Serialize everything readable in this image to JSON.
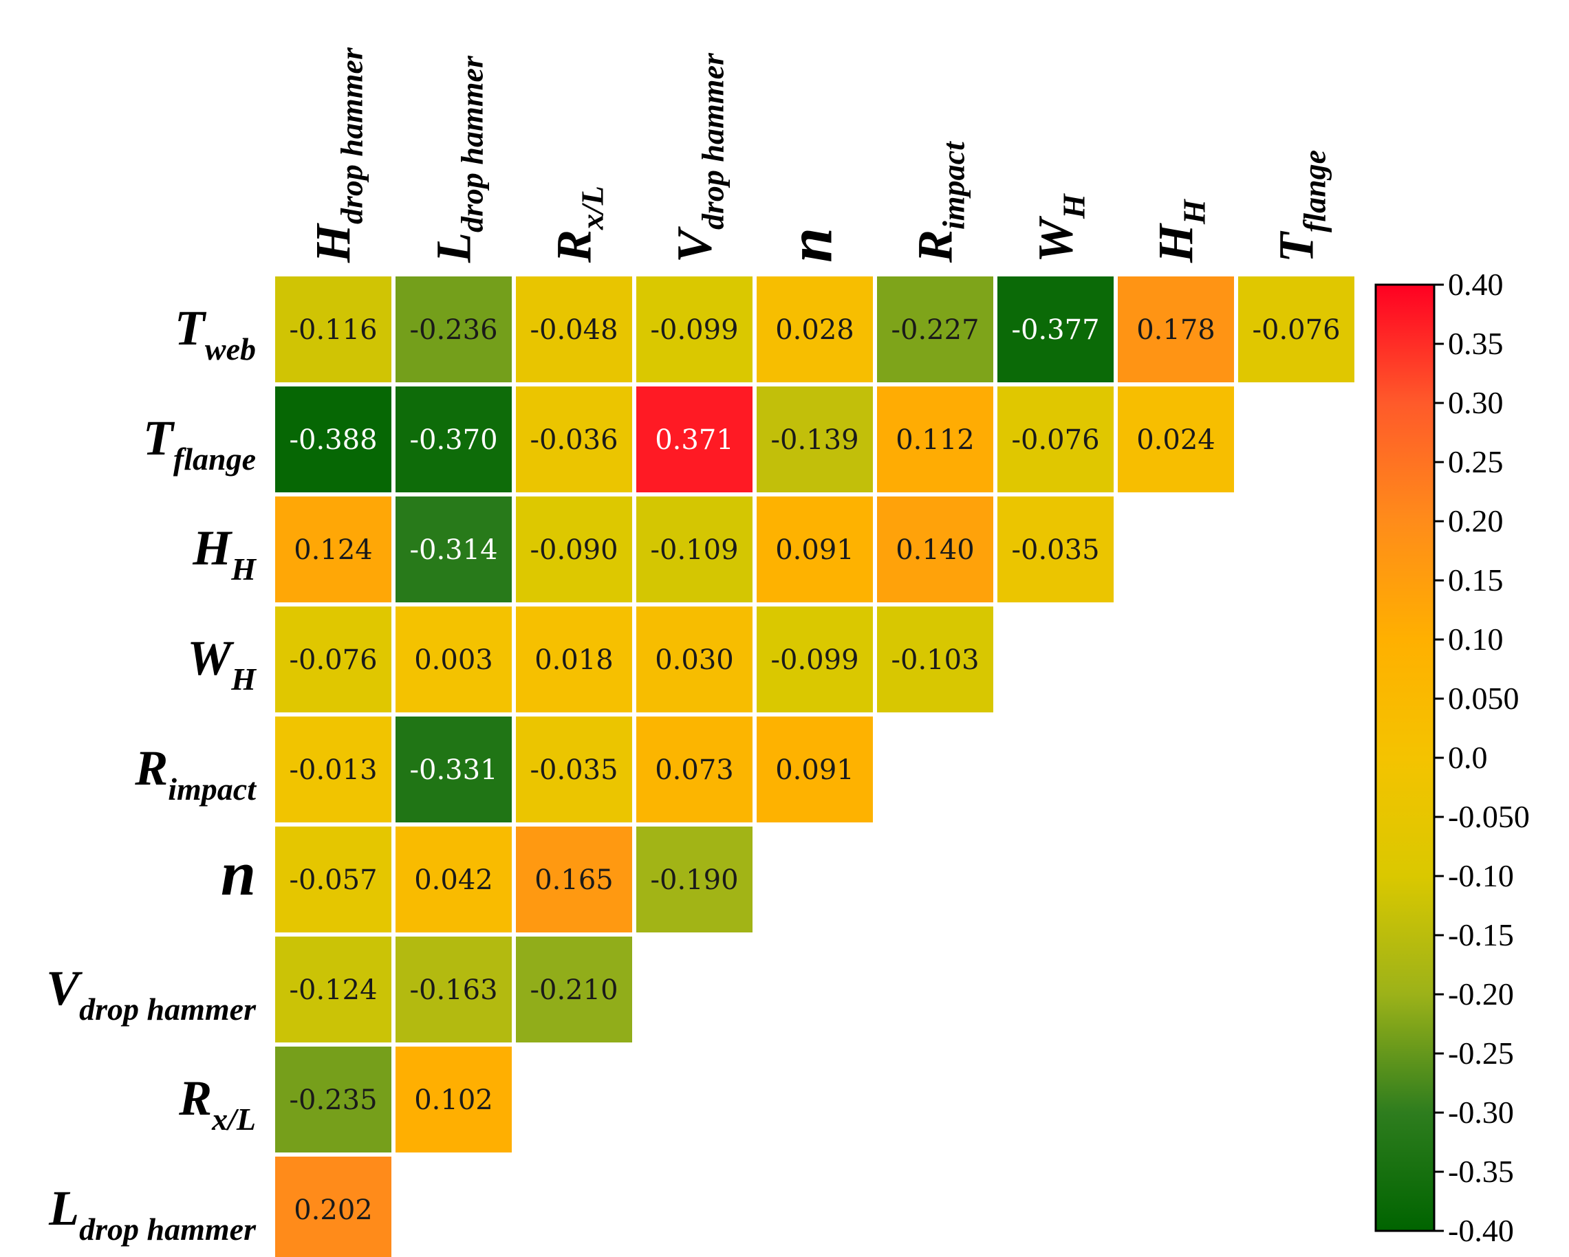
{
  "chart_data": {
    "type": "heatmap",
    "columns": [
      {
        "main": "H",
        "sub": "drop hammer"
      },
      {
        "main": "L",
        "sub": "drop hammer"
      },
      {
        "main": "R",
        "sub": "x/L"
      },
      {
        "main": "V",
        "sub": "drop hammer"
      },
      {
        "main": "n",
        "sub": ""
      },
      {
        "main": "R",
        "sub": "impact"
      },
      {
        "main": "W",
        "sub": "H"
      },
      {
        "main": "H",
        "sub": "H"
      },
      {
        "main": "T",
        "sub": "flange"
      }
    ],
    "rows": [
      {
        "main": "T",
        "sub": "web"
      },
      {
        "main": "T",
        "sub": "flange"
      },
      {
        "main": "H",
        "sub": "H"
      },
      {
        "main": "W",
        "sub": "H"
      },
      {
        "main": "R",
        "sub": "impact"
      },
      {
        "main": "n",
        "sub": ""
      },
      {
        "main": "V",
        "sub": "drop hammer"
      },
      {
        "main": "R",
        "sub": "x/L"
      },
      {
        "main": "L",
        "sub": "drop hammer"
      }
    ],
    "values": [
      [
        "-0.116",
        "-0.236",
        "-0.048",
        "-0.099",
        "0.028",
        "-0.227",
        "-0.377",
        "0.178",
        "-0.076"
      ],
      [
        "-0.388",
        "-0.370",
        "-0.036",
        "0.371",
        "-0.139",
        "0.112",
        "-0.076",
        "0.024"
      ],
      [
        "0.124",
        "-0.314",
        "-0.090",
        "-0.109",
        "0.091",
        "0.140",
        "-0.035"
      ],
      [
        "-0.076",
        "0.003",
        "0.018",
        "0.030",
        "-0.099",
        "-0.103"
      ],
      [
        "-0.013",
        "-0.331",
        "-0.035",
        "0.073",
        "0.091"
      ],
      [
        "-0.057",
        "0.042",
        "0.165",
        "-0.190"
      ],
      [
        "-0.124",
        "-0.163",
        "-0.210"
      ],
      [
        "-0.235",
        "0.102"
      ],
      [
        "0.202"
      ]
    ],
    "colorbar": {
      "min": -0.4,
      "max": 0.4,
      "tick_labels": [
        "0.40",
        "0.35",
        "0.30",
        "0.25",
        "0.20",
        "0.15",
        "0.10",
        "0.050",
        "0.0",
        "-0.050",
        "-0.10",
        "-0.15",
        "-0.20",
        "-0.25",
        "-0.30",
        "-0.35",
        "-0.40"
      ],
      "tick_values": [
        0.4,
        0.35,
        0.3,
        0.25,
        0.2,
        0.15,
        0.1,
        0.05,
        0.0,
        -0.05,
        -0.1,
        -0.15,
        -0.2,
        -0.25,
        -0.3,
        -0.35,
        -0.4
      ],
      "colors": [
        "#006400",
        "#2E7D1E",
        "#9CB219",
        "#DAC800",
        "#F4C300",
        "#FFB000",
        "#FF8C1A",
        "#FF5A2A",
        "#FF0022"
      ]
    }
  }
}
